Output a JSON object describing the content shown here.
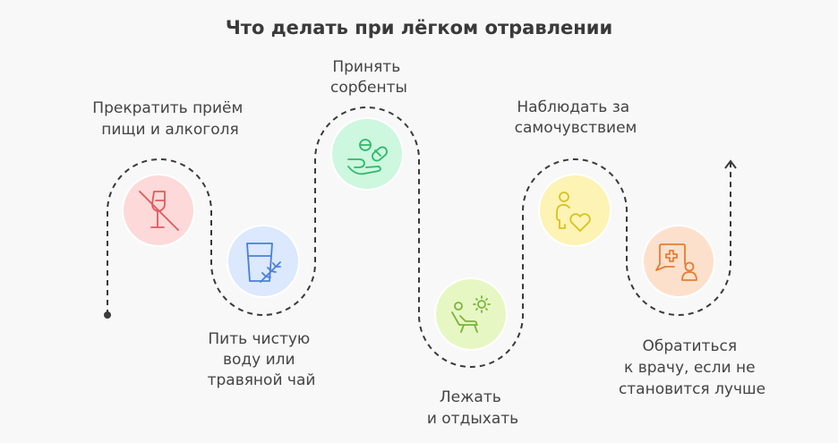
{
  "title": "Что делать при лёгком отравлении",
  "steps": [
    {
      "lines": [
        "Прекратить приём",
        "пищи и алкоголя"
      ],
      "icon": "no-alcohol-icon",
      "bg": "#fdd9d9",
      "color": "#e05a5a"
    },
    {
      "lines": [
        "Пить чистую",
        "воду или",
        "травяной чай"
      ],
      "icon": "water-glass-herb-icon",
      "bg": "#dbe8fd",
      "color": "#4a7fd9"
    },
    {
      "lines": [
        "Принять",
        "сорбенты"
      ],
      "icon": "pills-hand-icon",
      "bg": "#cdf7df",
      "color": "#2fb86a"
    },
    {
      "lines": [
        "Лежать",
        "и отдыхать"
      ],
      "icon": "rest-sun-icon",
      "bg": "#e6f7c4",
      "color": "#7cb33a"
    },
    {
      "lines": [
        "Наблюдать за",
        "самочувствием"
      ],
      "icon": "person-heart-icon",
      "bg": "#fcf3b4",
      "color": "#d9c21f"
    },
    {
      "lines": [
        "Обратиться",
        "к врачу, если не",
        "становится лучше"
      ],
      "icon": "doctor-chat-icon",
      "bg": "#fde0cc",
      "color": "#e57d32"
    }
  ]
}
